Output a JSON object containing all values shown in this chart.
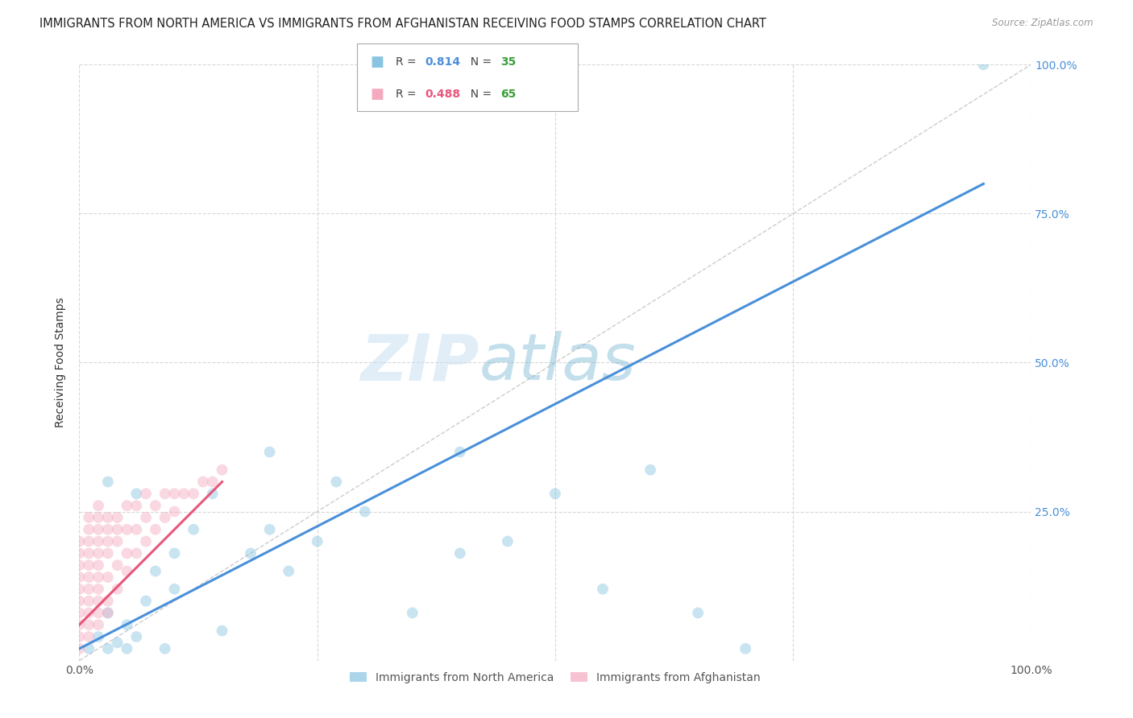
{
  "title": "IMMIGRANTS FROM NORTH AMERICA VS IMMIGRANTS FROM AFGHANISTAN RECEIVING FOOD STAMPS CORRELATION CHART",
  "source": "Source: ZipAtlas.com",
  "ylabel": "Receiving Food Stamps",
  "xlim": [
    0,
    1.0
  ],
  "ylim": [
    0,
    1.0
  ],
  "ytick_positions": [
    0.0,
    0.25,
    0.5,
    0.75,
    1.0
  ],
  "ytick_labels": [
    "0.0%",
    "25.0%",
    "50.0%",
    "75.0%",
    "100.0%"
  ],
  "xtick_positions": [
    0.0,
    1.0
  ],
  "xtick_labels": [
    "0.0%",
    "100.0%"
  ],
  "bg_color": "#ffffff",
  "grid_color": "#d8d8d8",
  "blue_color": "#89C4E1",
  "pink_color": "#F4A9BE",
  "blue_line_color": "#4A90D9",
  "pink_line_color": "#E8567A",
  "diag_color": "#cccccc",
  "R_blue": 0.814,
  "N_blue": 35,
  "R_pink": 0.488,
  "N_pink": 65,
  "legend_label_blue": "Immigrants from North America",
  "legend_label_pink": "Immigrants from Afghanistan",
  "watermark_zip": "ZIP",
  "watermark_atlas": "atlas",
  "blue_scatter_x": [
    0.01,
    0.02,
    0.03,
    0.03,
    0.04,
    0.05,
    0.05,
    0.06,
    0.07,
    0.08,
    0.09,
    0.1,
    0.1,
    0.12,
    0.14,
    0.15,
    0.18,
    0.2,
    0.22,
    0.25,
    0.27,
    0.3,
    0.35,
    0.4,
    0.45,
    0.5,
    0.55,
    0.6,
    0.65,
    0.7,
    0.95,
    0.03,
    0.06,
    0.2,
    0.4
  ],
  "blue_scatter_y": [
    0.02,
    0.04,
    0.02,
    0.08,
    0.03,
    0.02,
    0.06,
    0.04,
    0.1,
    0.15,
    0.02,
    0.12,
    0.18,
    0.22,
    0.28,
    0.05,
    0.18,
    0.22,
    0.15,
    0.2,
    0.3,
    0.25,
    0.08,
    0.18,
    0.2,
    0.28,
    0.12,
    0.32,
    0.08,
    0.02,
    1.0,
    0.3,
    0.28,
    0.35,
    0.35
  ],
  "pink_scatter_x": [
    0.0,
    0.0,
    0.0,
    0.0,
    0.0,
    0.0,
    0.0,
    0.0,
    0.0,
    0.0,
    0.01,
    0.01,
    0.01,
    0.01,
    0.01,
    0.01,
    0.01,
    0.01,
    0.01,
    0.01,
    0.01,
    0.02,
    0.02,
    0.02,
    0.02,
    0.02,
    0.02,
    0.02,
    0.02,
    0.02,
    0.02,
    0.02,
    0.03,
    0.03,
    0.03,
    0.03,
    0.03,
    0.03,
    0.03,
    0.04,
    0.04,
    0.04,
    0.04,
    0.04,
    0.05,
    0.05,
    0.05,
    0.05,
    0.06,
    0.06,
    0.06,
    0.07,
    0.07,
    0.07,
    0.08,
    0.08,
    0.09,
    0.09,
    0.1,
    0.1,
    0.11,
    0.12,
    0.13,
    0.14,
    0.15
  ],
  "pink_scatter_y": [
    0.02,
    0.04,
    0.06,
    0.08,
    0.1,
    0.12,
    0.14,
    0.16,
    0.18,
    0.2,
    0.04,
    0.06,
    0.08,
    0.1,
    0.12,
    0.14,
    0.16,
    0.18,
    0.2,
    0.22,
    0.24,
    0.06,
    0.08,
    0.1,
    0.12,
    0.14,
    0.16,
    0.18,
    0.2,
    0.22,
    0.24,
    0.26,
    0.08,
    0.1,
    0.14,
    0.18,
    0.2,
    0.22,
    0.24,
    0.12,
    0.16,
    0.2,
    0.22,
    0.24,
    0.15,
    0.18,
    0.22,
    0.26,
    0.18,
    0.22,
    0.26,
    0.2,
    0.24,
    0.28,
    0.22,
    0.26,
    0.24,
    0.28,
    0.25,
    0.28,
    0.28,
    0.28,
    0.3,
    0.3,
    0.32
  ],
  "blue_line_x": [
    0.0,
    0.95
  ],
  "blue_line_y": [
    0.02,
    0.8
  ],
  "pink_line_x": [
    0.0,
    0.15
  ],
  "pink_line_y": [
    0.06,
    0.3
  ],
  "title_fontsize": 10.5,
  "tick_fontsize": 10,
  "scatter_size": 100,
  "scatter_alpha": 0.45,
  "line_width": 2.2
}
